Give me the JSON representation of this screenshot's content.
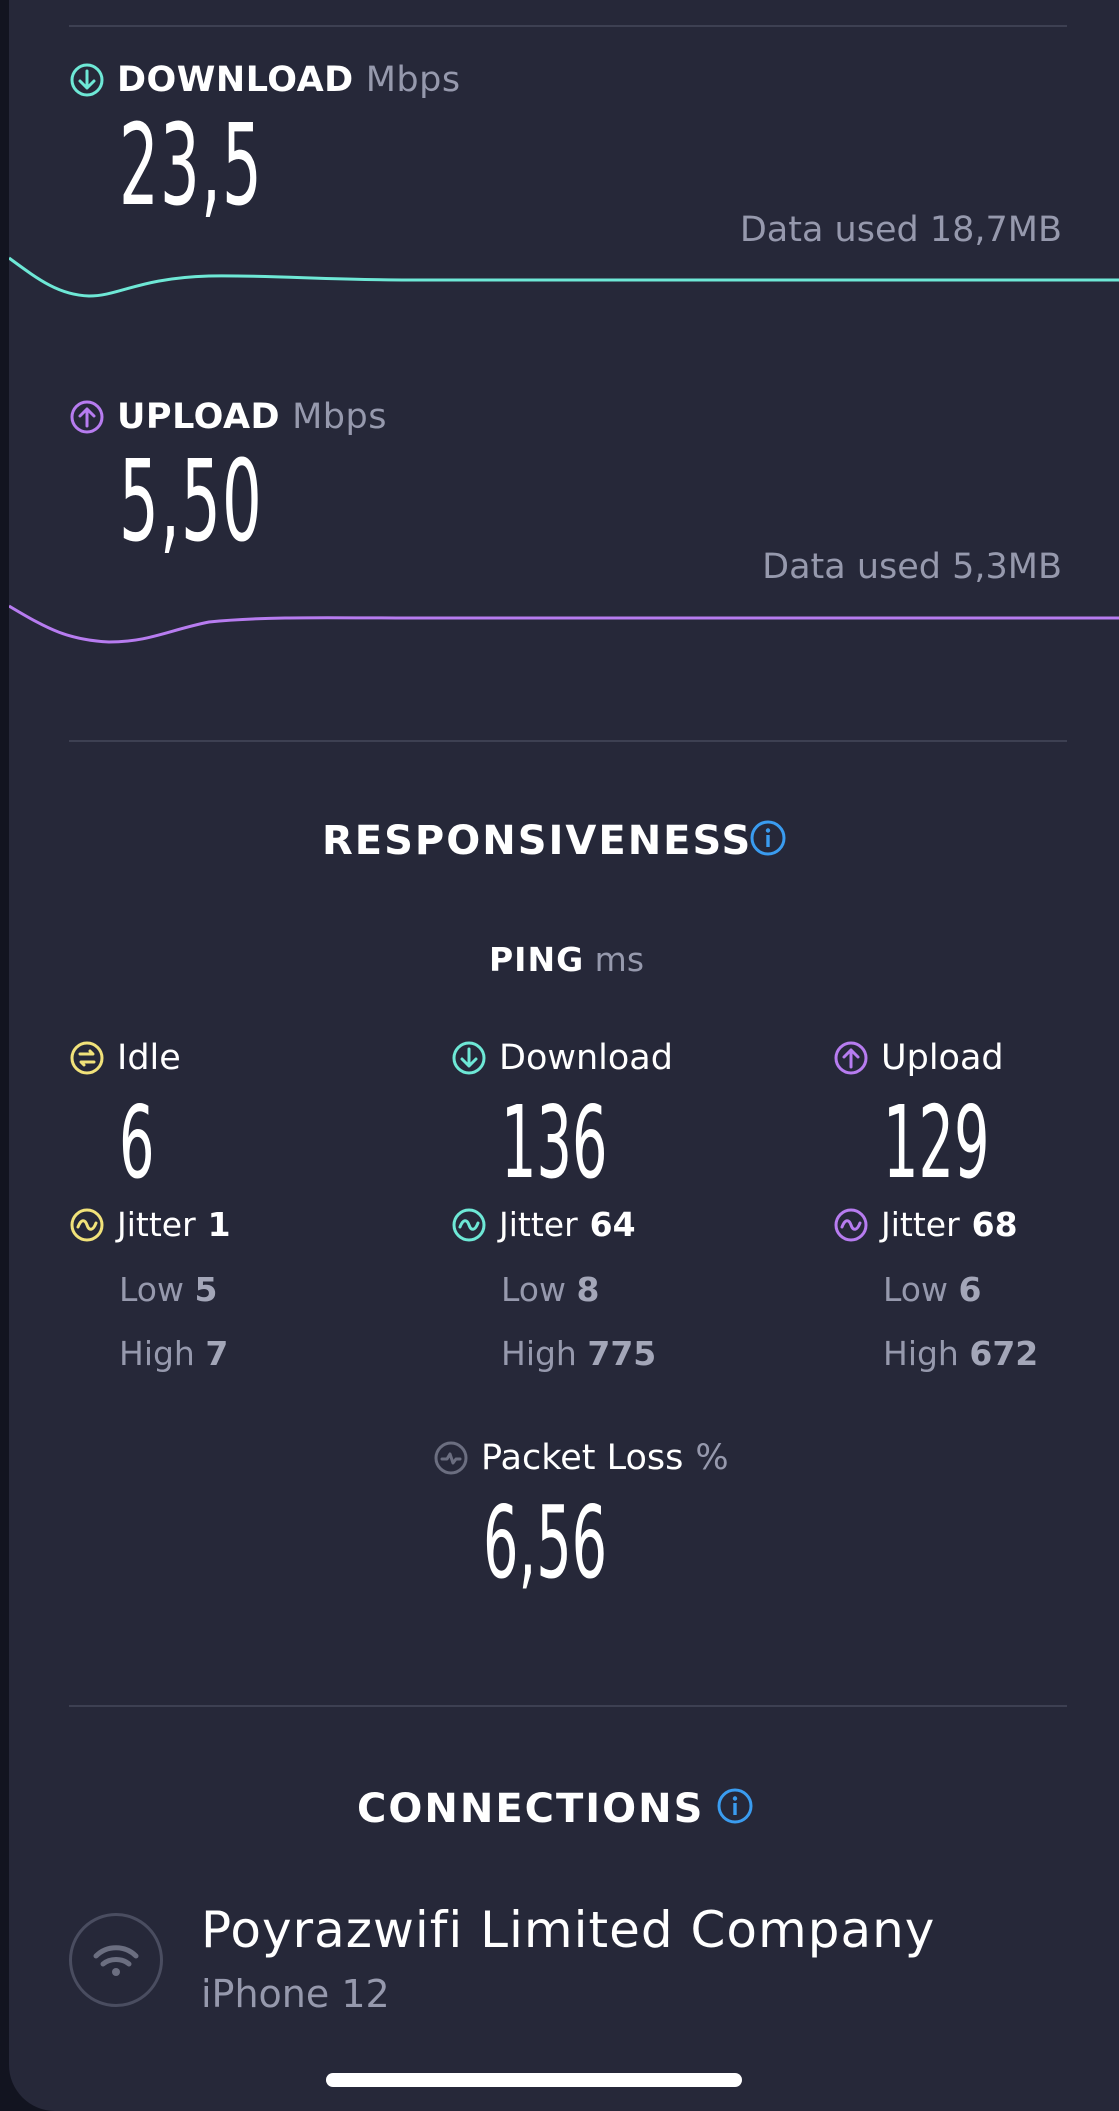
{
  "download": {
    "label": "DOWNLOAD",
    "unit": "Mbps",
    "value": "23,5",
    "data_used": "Data used 18,7MB",
    "color": "#6ee8d6"
  },
  "upload": {
    "label": "UPLOAD",
    "unit": "Mbps",
    "value": "5,50",
    "data_used": "Data used 5,3MB",
    "color": "#b77cf0"
  },
  "responsiveness": {
    "title": "RESPONSIVENESS",
    "ping_label": "PING",
    "ping_unit": "ms",
    "columns": [
      {
        "name": "Idle",
        "value": "6",
        "jitter_label": "Jitter",
        "jitter": "1",
        "low_label": "Low",
        "low": "5",
        "high_label": "High",
        "high": "7",
        "color": "#f1e27a"
      },
      {
        "name": "Download",
        "value": "136",
        "jitter_label": "Jitter",
        "jitter": "64",
        "low_label": "Low",
        "low": "8",
        "high_label": "High",
        "high": "775",
        "color": "#6ee8d6"
      },
      {
        "name": "Upload",
        "value": "129",
        "jitter_label": "Jitter",
        "jitter": "68",
        "low_label": "Low",
        "low": "6",
        "high_label": "High",
        "high": "672",
        "color": "#b77cf0"
      }
    ],
    "packet_loss_label": "Packet Loss",
    "packet_loss_unit": "%",
    "packet_loss": "6,56"
  },
  "connections": {
    "title": "CONNECTIONS",
    "provider": "Poyrazwifi Limited Company",
    "device": "iPhone 12"
  },
  "accent_info": "#3a9cf0"
}
